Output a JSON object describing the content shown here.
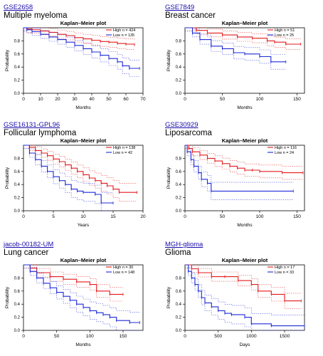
{
  "colors": {
    "high": "#e41a1c",
    "low": "#1f2bd6",
    "axis": "#000000",
    "link": "#1a0dab"
  },
  "panels": [
    {
      "id": "GSE2658",
      "disease": "Multiple myeloma",
      "chart_data": {
        "type": "line",
        "title": "Kaplan–Meier plot",
        "xlabel": "Months",
        "ylabel": "Probability",
        "xlim": [
          0,
          70
        ],
        "ylim": [
          0,
          1
        ],
        "xticks": [
          0,
          10,
          20,
          30,
          40,
          50,
          60,
          70
        ],
        "yticks": [
          0,
          0.2,
          0.4,
          0.6,
          0.8
        ],
        "legend_position": "top-right",
        "legend": [
          "High n = 424",
          "Low  n = 135"
        ],
        "series": [
          {
            "group": "high",
            "points": [
              [
                0,
                1
              ],
              [
                2,
                0.98
              ],
              [
                5,
                0.97
              ],
              [
                10,
                0.95
              ],
              [
                15,
                0.93
              ],
              [
                20,
                0.9
              ],
              [
                25,
                0.88
              ],
              [
                30,
                0.85
              ],
              [
                35,
                0.83
              ],
              [
                40,
                0.81
              ],
              [
                45,
                0.79
              ],
              [
                50,
                0.78
              ],
              [
                55,
                0.76
              ],
              [
                60,
                0.75
              ],
              [
                65,
                0.74
              ]
            ]
          },
          {
            "group": "low",
            "points": [
              [
                0,
                1
              ],
              [
                2,
                0.97
              ],
              [
                5,
                0.94
              ],
              [
                10,
                0.9
              ],
              [
                15,
                0.86
              ],
              [
                20,
                0.82
              ],
              [
                25,
                0.78
              ],
              [
                30,
                0.73
              ],
              [
                35,
                0.68
              ],
              [
                40,
                0.63
              ],
              [
                45,
                0.58
              ],
              [
                50,
                0.53
              ],
              [
                55,
                0.48
              ],
              [
                58,
                0.42
              ],
              [
                62,
                0.38
              ],
              [
                68,
                0.38
              ]
            ]
          }
        ]
      }
    },
    {
      "id": "GSE7849",
      "disease": "Breast cancer",
      "chart_data": {
        "type": "line",
        "title": "Kaplan–Meier plot",
        "xlabel": "Months",
        "ylabel": "Probability",
        "xlim": [
          0,
          160
        ],
        "ylim": [
          0,
          1
        ],
        "xticks": [
          0,
          50,
          100,
          150
        ],
        "yticks": [
          0,
          0.2,
          0.4,
          0.6,
          0.8
        ],
        "legend_position": "top-right",
        "legend": [
          "High n = 51",
          "Low  n = 25"
        ],
        "series": [
          {
            "group": "high",
            "points": [
              [
                0,
                1
              ],
              [
                15,
                0.96
              ],
              [
                30,
                0.92
              ],
              [
                50,
                0.89
              ],
              [
                70,
                0.86
              ],
              [
                90,
                0.84
              ],
              [
                110,
                0.8
              ],
              [
                120,
                0.78
              ],
              [
                135,
                0.75
              ],
              [
                155,
                0.75
              ]
            ]
          },
          {
            "group": "low",
            "points": [
              [
                0,
                1
              ],
              [
                10,
                0.92
              ],
              [
                20,
                0.82
              ],
              [
                35,
                0.72
              ],
              [
                50,
                0.68
              ],
              [
                65,
                0.62
              ],
              [
                80,
                0.6
              ],
              [
                100,
                0.56
              ],
              [
                115,
                0.48
              ],
              [
                135,
                0.48
              ]
            ]
          }
        ]
      }
    },
    {
      "id": "GSE16131-GPL96",
      "disease": "Follicular lymphoma",
      "chart_data": {
        "type": "line",
        "title": "Kaplan–Meier plot",
        "xlabel": "Years",
        "ylabel": "Probability",
        "xlim": [
          0,
          20
        ],
        "ylim": [
          0,
          1
        ],
        "xticks": [
          0,
          5,
          10,
          15,
          20
        ],
        "yticks": [
          0,
          0.2,
          0.4,
          0.6,
          0.8
        ],
        "legend_position": "top-right",
        "legend": [
          "High n = 138",
          "Low  n = 42"
        ],
        "series": [
          {
            "group": "high",
            "points": [
              [
                0,
                1
              ],
              [
                1,
                0.97
              ],
              [
                2,
                0.92
              ],
              [
                3,
                0.88
              ],
              [
                4,
                0.84
              ],
              [
                5,
                0.79
              ],
              [
                6,
                0.75
              ],
              [
                7,
                0.7
              ],
              [
                8,
                0.65
              ],
              [
                9,
                0.6
              ],
              [
                10,
                0.55
              ],
              [
                11,
                0.5
              ],
              [
                12,
                0.46
              ],
              [
                13,
                0.42
              ],
              [
                14,
                0.38
              ],
              [
                15,
                0.33
              ],
              [
                16,
                0.28
              ],
              [
                19,
                0.28
              ]
            ]
          },
          {
            "group": "low",
            "points": [
              [
                0,
                1
              ],
              [
                1,
                0.88
              ],
              [
                2,
                0.78
              ],
              [
                3,
                0.68
              ],
              [
                4,
                0.6
              ],
              [
                5,
                0.52
              ],
              [
                6,
                0.46
              ],
              [
                7,
                0.4
              ],
              [
                8,
                0.33
              ],
              [
                9,
                0.3
              ],
              [
                10,
                0.28
              ],
              [
                12,
                0.25
              ],
              [
                13,
                0.12
              ],
              [
                15,
                0.12
              ]
            ]
          }
        ]
      }
    },
    {
      "id": "GSE30929",
      "disease": "Liposarcoma",
      "chart_data": {
        "type": "line",
        "title": "Kaplan–Meier plot",
        "xlabel": "Months",
        "ylabel": "Probability",
        "xlim": [
          0,
          160
        ],
        "ylim": [
          0,
          1
        ],
        "xticks": [
          0,
          50,
          100,
          150
        ],
        "yticks": [
          0,
          0.2,
          0.4,
          0.6,
          0.8
        ],
        "legend_position": "top-right",
        "legend": [
          "High n = 116",
          "Low  n = 24"
        ],
        "series": [
          {
            "group": "high",
            "points": [
              [
                0,
                1
              ],
              [
                5,
                0.95
              ],
              [
                10,
                0.9
              ],
              [
                20,
                0.85
              ],
              [
                30,
                0.8
              ],
              [
                40,
                0.76
              ],
              [
                50,
                0.72
              ],
              [
                60,
                0.68
              ],
              [
                70,
                0.65
              ],
              [
                80,
                0.62
              ],
              [
                90,
                0.62
              ],
              [
                100,
                0.6
              ],
              [
                130,
                0.58
              ],
              [
                158,
                0.58
              ]
            ]
          },
          {
            "group": "low",
            "points": [
              [
                0,
                1
              ],
              [
                3,
                0.9
              ],
              [
                8,
                0.78
              ],
              [
                12,
                0.68
              ],
              [
                18,
                0.58
              ],
              [
                22,
                0.48
              ],
              [
                30,
                0.42
              ],
              [
                35,
                0.3
              ],
              [
                145,
                0.3
              ]
            ]
          }
        ]
      }
    },
    {
      "id": "jacob-00182-UM",
      "disease": "Lung cancer",
      "chart_data": {
        "type": "line",
        "title": "Kaplan–Meier plot",
        "xlabel": "Months",
        "ylabel": "Probability",
        "xlim": [
          0,
          180
        ],
        "ylim": [
          0,
          1
        ],
        "xticks": [
          0,
          50,
          100,
          150
        ],
        "yticks": [
          0,
          0.2,
          0.4,
          0.6,
          0.8
        ],
        "legend_position": "top-right",
        "legend": [
          "High n = 30",
          "Low  n = 148"
        ],
        "series": [
          {
            "group": "high",
            "points": [
              [
                0,
                1
              ],
              [
                10,
                0.95
              ],
              [
                20,
                0.88
              ],
              [
                40,
                0.82
              ],
              [
                60,
                0.78
              ],
              [
                80,
                0.74
              ],
              [
                100,
                0.7
              ],
              [
                110,
                0.6
              ],
              [
                130,
                0.55
              ],
              [
                150,
                0.55
              ]
            ]
          },
          {
            "group": "low",
            "points": [
              [
                0,
                1
              ],
              [
                10,
                0.9
              ],
              [
                20,
                0.8
              ],
              [
                30,
                0.72
              ],
              [
                40,
                0.65
              ],
              [
                50,
                0.58
              ],
              [
                60,
                0.52
              ],
              [
                70,
                0.46
              ],
              [
                80,
                0.4
              ],
              [
                90,
                0.35
              ],
              [
                100,
                0.3
              ],
              [
                110,
                0.27
              ],
              [
                120,
                0.24
              ],
              [
                130,
                0.2
              ],
              [
                140,
                0.15
              ],
              [
                160,
                0.12
              ],
              [
                175,
                0.12
              ]
            ]
          }
        ]
      }
    },
    {
      "id": "MGH-glioma",
      "disease": "Glioma",
      "chart_data": {
        "type": "line",
        "title": "Kaplan–Meier plot",
        "xlabel": "Days",
        "ylabel": "Probability",
        "xlim": [
          0,
          1800
        ],
        "ylim": [
          0,
          1
        ],
        "xticks": [
          0,
          500,
          1000,
          1500
        ],
        "yticks": [
          0,
          0.2,
          0.4,
          0.6,
          0.8
        ],
        "legend_position": "top-right",
        "legend": [
          "High n = 17",
          "Low  n = 33"
        ],
        "series": [
          {
            "group": "high",
            "points": [
              [
                0,
                1
              ],
              [
                100,
                0.94
              ],
              [
                200,
                0.88
              ],
              [
                400,
                0.82
              ],
              [
                600,
                0.82
              ],
              [
                800,
                0.76
              ],
              [
                1000,
                0.7
              ],
              [
                1100,
                0.6
              ],
              [
                1300,
                0.55
              ],
              [
                1500,
                0.45
              ],
              [
                1750,
                0.45
              ]
            ]
          },
          {
            "group": "low",
            "points": [
              [
                0,
                1
              ],
              [
                50,
                0.9
              ],
              [
                100,
                0.8
              ],
              [
                150,
                0.7
              ],
              [
                200,
                0.6
              ],
              [
                250,
                0.5
              ],
              [
                300,
                0.42
              ],
              [
                400,
                0.36
              ],
              [
                500,
                0.3
              ],
              [
                600,
                0.26
              ],
              [
                700,
                0.24
              ],
              [
                900,
                0.2
              ],
              [
                1000,
                0.1
              ],
              [
                1300,
                0.07
              ],
              [
                1800,
                0.07
              ]
            ]
          }
        ]
      }
    }
  ]
}
